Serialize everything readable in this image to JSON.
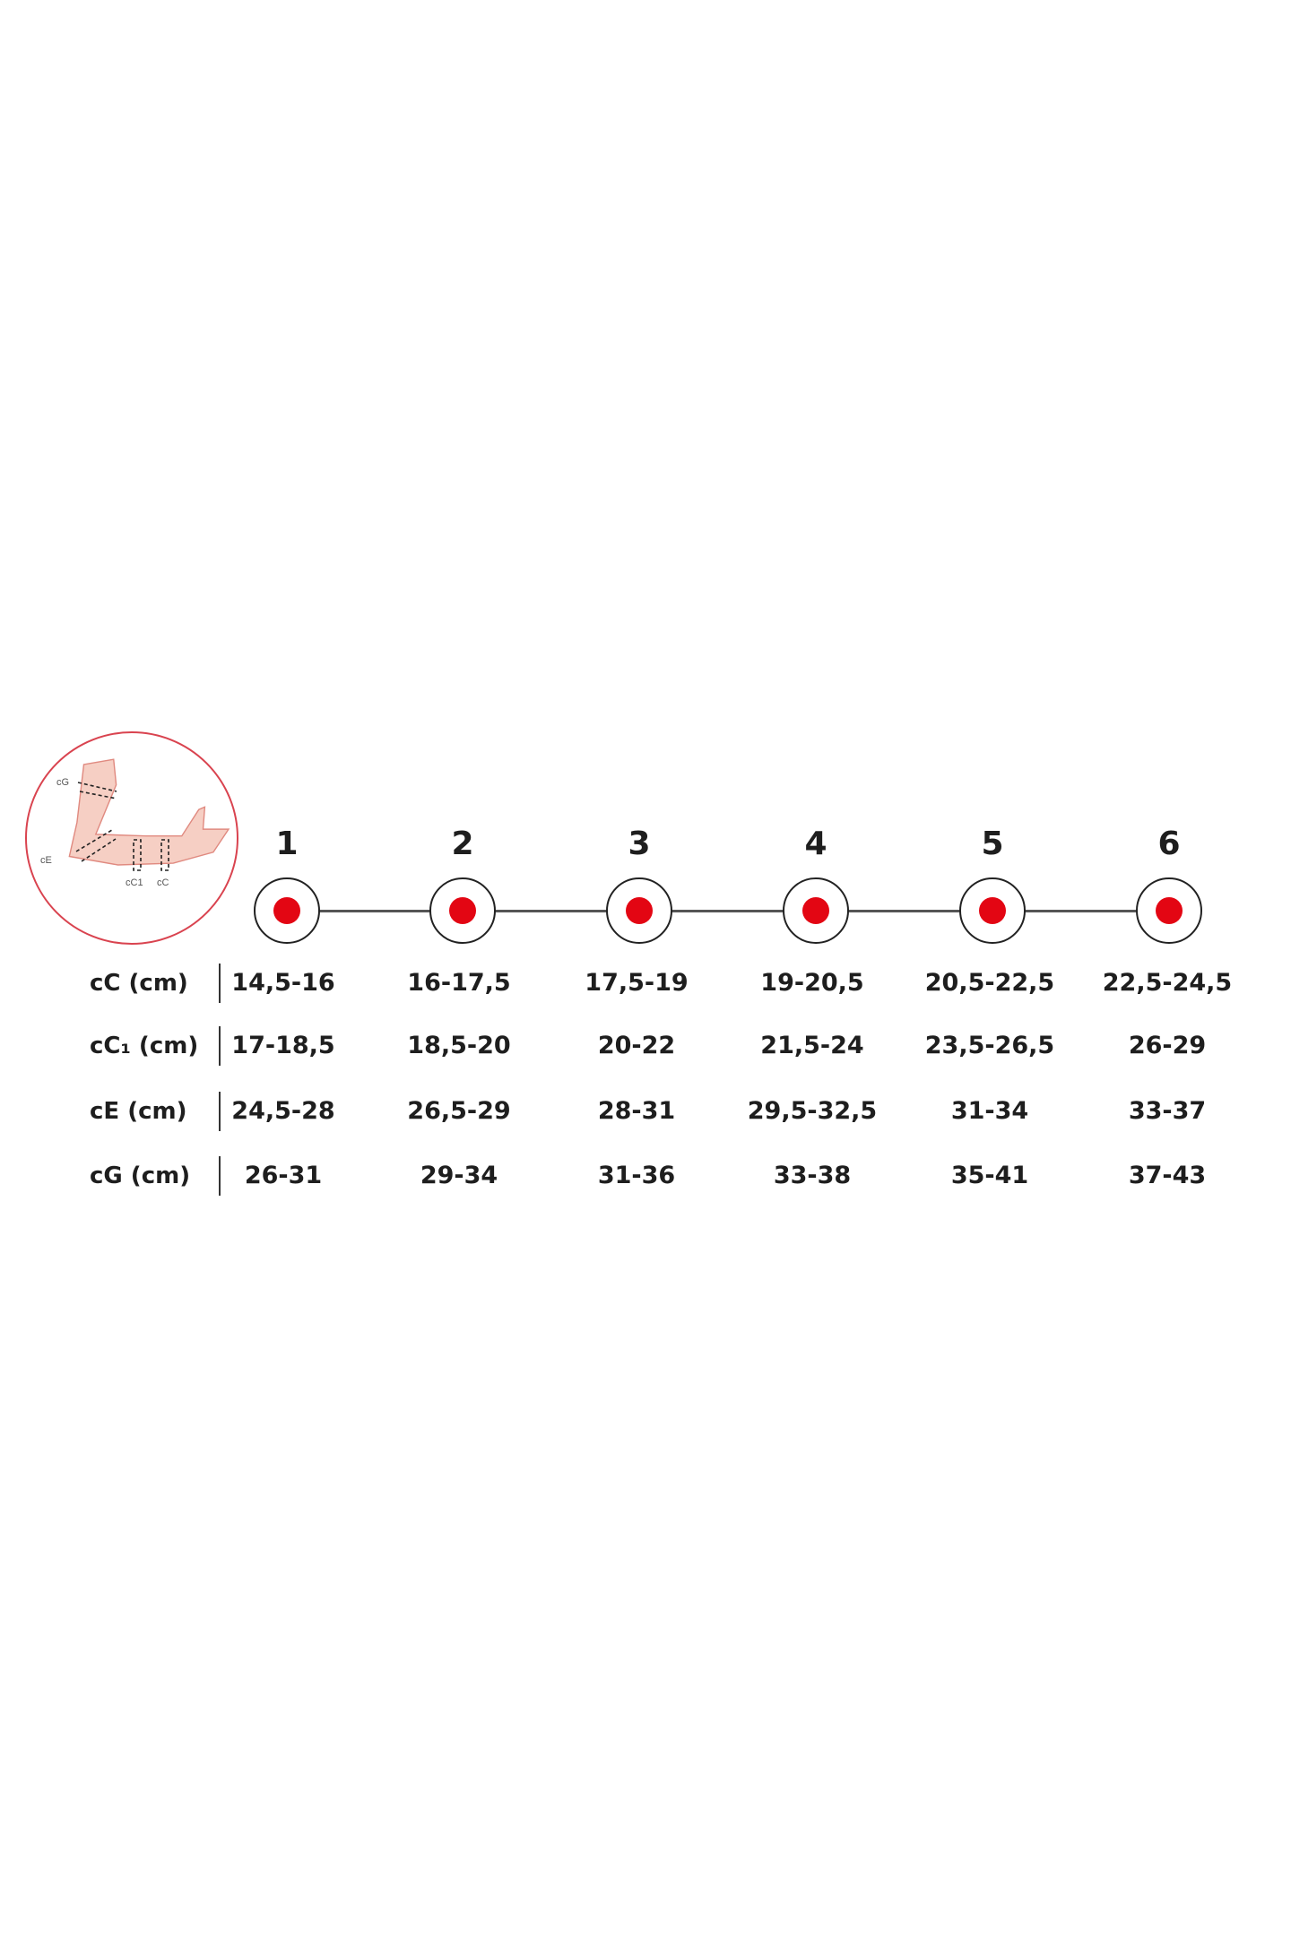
{
  "colors": {
    "accent": "#e30613",
    "limb": "#f6cfc4",
    "circle": "#d9434f"
  },
  "illustration": {
    "icon": "arm-measurement-diagram",
    "labels": [
      "cG",
      "cE",
      "cC1",
      "cC"
    ]
  },
  "sizes": [
    "1",
    "2",
    "3",
    "4",
    "5",
    "6"
  ],
  "rows": [
    {
      "label": "cC (cm)",
      "values": [
        "14,5-16",
        "16-17,5",
        "17,5-19",
        "19-20,5",
        "20,5-22,5",
        "22,5-24,5"
      ]
    },
    {
      "label": "cC₁ (cm)",
      "values": [
        "17-18,5",
        "18,5-20",
        "20-22",
        "21,5-24",
        "23,5-26,5",
        "26-29"
      ]
    },
    {
      "label": "cE (cm)",
      "values": [
        "24,5-28",
        "26,5-29",
        "28-31",
        "29,5-32,5",
        "31-34",
        "33-37"
      ]
    },
    {
      "label": "cG (cm)",
      "values": [
        "26-31",
        "29-34",
        "31-36",
        "33-38",
        "35-41",
        "37-43"
      ]
    }
  ]
}
